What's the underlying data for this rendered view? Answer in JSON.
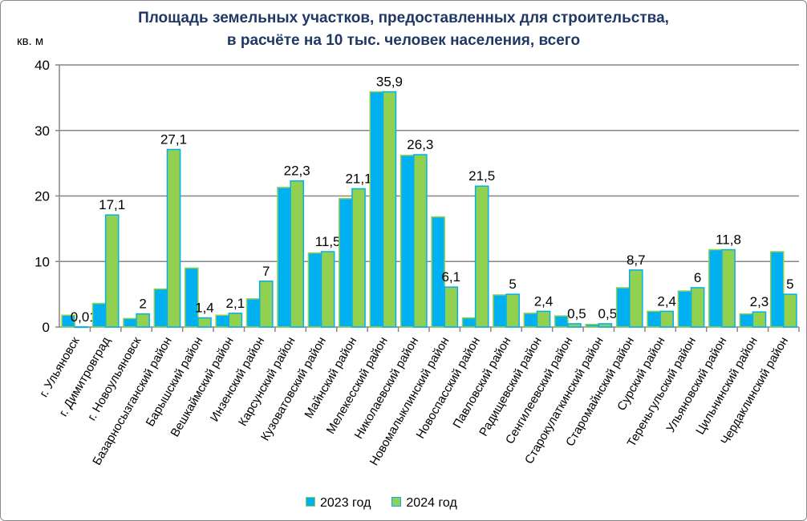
{
  "chart_data": {
    "type": "bar",
    "title_line1": "Площадь земельных участков, предоставленных для строительства,",
    "title_line2": "в расчёте на 10 тыс. человек населения, всего",
    "ylabel": "кв. м",
    "ylim": [
      0,
      40
    ],
    "yticks": [
      "0",
      "10",
      "20",
      "30",
      "40"
    ],
    "grid": true,
    "legend_position": "bottom",
    "categories": [
      "г. Ульяновск",
      "г. Димитровград",
      "г. Новоульяновск",
      "Базарносызганский район",
      "Барышский район",
      "Вешкаймский район",
      "Инзенский район",
      "Карсунский район",
      "Кузоватовский район",
      "Майнский район",
      "Мелекесский район",
      "Николаевский район",
      "Новомалыклинский район",
      "Новоспасский район",
      "Павловский район",
      "Радищевский район",
      "Сенгилеевский район",
      "Старокулаткинский район",
      "Старомайнский район",
      "Сурский район",
      "Тереньгульский район",
      "Ульяновский район",
      "Цильнинский район",
      "Чердаклинский район"
    ],
    "series": [
      {
        "name": "2023 год",
        "color": "#00b0f0",
        "border": "#92d050",
        "values": [
          1.8,
          3.6,
          1.3,
          5.8,
          9.0,
          1.8,
          4.3,
          21.3,
          11.3,
          19.6,
          35.9,
          26.2,
          16.8,
          1.4,
          4.9,
          2.1,
          1.7,
          0.4,
          6.0,
          2.4,
          5.5,
          11.8,
          2.0,
          11.5
        ]
      },
      {
        "name": "2024 год",
        "color": "#92d050",
        "border": "#00b0f0",
        "values": [
          0.01,
          17.1,
          2,
          27.1,
          1.4,
          2.1,
          7,
          22.3,
          11.5,
          21.1,
          35.9,
          26.3,
          6.1,
          21.5,
          5,
          2.4,
          0.5,
          0.5,
          8.7,
          2.4,
          6,
          11.8,
          2.3,
          5
        ],
        "labels": [
          "0,01",
          "17,1",
          "2",
          "27,1",
          "1,4",
          "2,1",
          "7",
          "22,3",
          "11,5",
          "21,1",
          "35,9",
          "26,3",
          "6,1",
          "21,5",
          "5",
          "2,4",
          "0,5",
          "0,5",
          "8,7",
          "2,4",
          "6",
          "11,8",
          "2,3",
          "5"
        ]
      }
    ]
  }
}
